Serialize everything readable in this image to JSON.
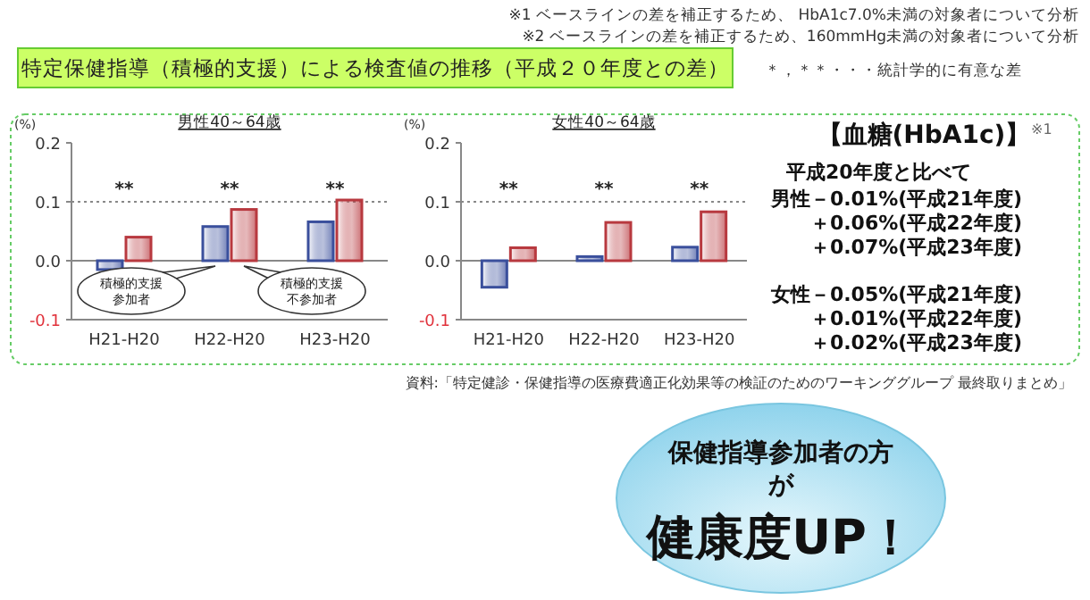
{
  "chart_data": [
    {
      "type": "other",
      "title": "特定保健指導（積極的支援）による検査値の推移（平成２０年度との差）",
      "annotations": [
        "※1 ベースラインの差を補正するため、 HbA1c7.0%未満の対象者について分析",
        "※2 ベースラインの差を補正するため、160mmHg未満の対象者について分析",
        "＊，＊＊・・・統計学的に有意な差",
        "資料:「特定健診・保健指導の医療費適正化効果等の検証のためのワーキンググループ 最終取りまとめ」",
        "保健指導参加者の方",
        "が",
        "健康度UP！"
      ]
    },
    {
      "type": "bar",
      "title": "男性40～64歳",
      "ylabel": "(%)",
      "categories": [
        "H21-H20",
        "H22-H20",
        "H23-H20"
      ],
      "series": [
        {
          "name": "積極的支援参加者",
          "color": "#3a4f9c",
          "values": [
            -0.015,
            0.058,
            0.066
          ]
        },
        {
          "name": "積極的支援不参加者",
          "color": "#b8393f",
          "values": [
            0.04,
            0.087,
            0.103
          ]
        }
      ],
      "ylim": [
        -0.1,
        0.2
      ],
      "yticks": [
        {
          "value": -0.1,
          "label": "-0.1"
        },
        {
          "value": 0,
          "label": "0.0"
        },
        {
          "value": 0.1,
          "label": "0.1"
        },
        {
          "value": 0.2,
          "label": "0.2"
        }
      ],
      "ref_lines": [
        {
          "axis": "y",
          "value": 0.1,
          "line_style": "dotted"
        }
      ],
      "annotations": [
        "**",
        "**",
        "**"
      ]
    },
    {
      "type": "bar",
      "title": "女性40～64歳",
      "ylabel": "(%)",
      "categories": [
        "H21-H20",
        "H22-H20",
        "H23-H20"
      ],
      "series": [
        {
          "color": "#3a4f9c",
          "values": [
            -0.045,
            0.007,
            0.023
          ]
        },
        {
          "color": "#b8393f",
          "values": [
            0.022,
            0.065,
            0.083
          ]
        }
      ],
      "ylim": [
        -0.1,
        0.2
      ],
      "yticks": [
        {
          "value": -0.1,
          "label": "-0.1"
        },
        {
          "value": 0,
          "label": "0.0"
        },
        {
          "value": 0.1,
          "label": "0.1"
        },
        {
          "value": 0.2,
          "label": "0.2"
        }
      ],
      "ref_lines": [
        {
          "axis": "y",
          "value": 0.1,
          "line_style": "dotted"
        }
      ],
      "annotations": [
        "**",
        "**",
        "**"
      ]
    },
    {
      "type": "other",
      "title": "【血糖(HbA1c)】",
      "annotations": [
        "※1",
        "平成20年度と比べて",
        "男性－0.01%(平成21年度)",
        "＋0.06%(平成22年度)",
        "＋0.07%(平成23年度)",
        "女性－0.05%(平成21年度)",
        "＋0.01%(平成22年度)",
        "＋0.02%(平成23年度)"
      ]
    }
  ]
}
